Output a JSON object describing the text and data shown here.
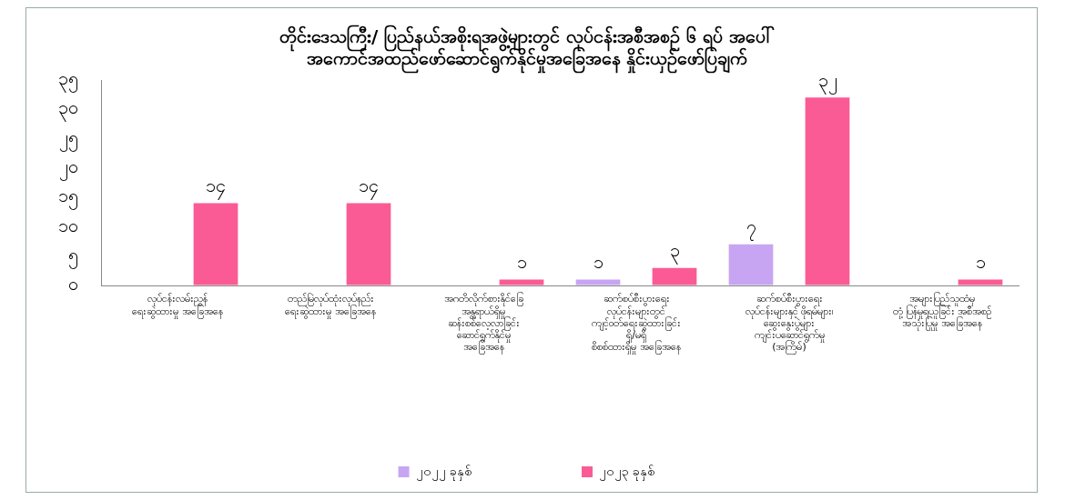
{
  "chart_data": {
    "type": "bar",
    "title": "တိုင်းဒေသကြီး/ ပြည်နယ်အစိုးရအဖွဲ့များတွင် လုပ်ငန်းအစီအစဉ် ၆ ရပ် အပေါ်\nအကောင်အထည်ဖော်ဆောင်ရွက်နိုင်မှုအခြေအနေ နှိုင်းယှဉ်ဖော်ပြချက်",
    "categories": [
      "လုပ်ငန်းလမ်းညွှန်\nရေးဆွဲထားမှု အခြေအနေ",
      "တည်မြဲလုပ်ထုံးလုပ်နည်း\nရေးဆွဲထားမှု အခြေအနေ",
      "အဂတိလိုက်စားနိုင်ခြေ\nအန္တရာယ်ရှိမှု\nဆန်းစစ်လေ့လာခြင်း\nဆောင်ရွက်နိုင်မှု\nအခြေအနေ",
      "ဆက်စပ်စီးပွားရေး\nလုပ်ငန်းများတွင်\nကျင့်ဝတ်ရေးဆွဲထားခြင်း\nရှိ/မရှိ\nစိစစ်ထားရှိမှု အခြေအနေ",
      "ဆက်စပ်စီးပွားရေး\nလုပ်ငန်းများနှင့် ဖိုရမ်များ၊\nဆွေးနွေးပွဲများ\nကျင်းပဆောင်ရွက်မှု\n(အကြိမ်)",
      "အများပြည်သူထံမှ\nတုံ့ပြန်မှုရယူခြင်း အစီအစဉ်\nအသုံးပြုမှု အခြေအနေ"
    ],
    "series": [
      {
        "name": "၂၀၂၂ ခုနှစ်",
        "color": "#c8a5f2",
        "values": [
          null,
          null,
          null,
          1,
          7,
          null
        ],
        "value_labels": [
          null,
          null,
          null,
          "၁",
          "၇",
          null
        ]
      },
      {
        "name": "၂၀၂၃ ခုနှစ်",
        "color": "#fb5b94",
        "values": [
          14,
          14,
          1,
          3,
          32,
          1
        ],
        "value_labels": [
          "၁၄",
          "၁၄",
          "၁",
          "၃",
          "၃၂",
          "၁"
        ]
      }
    ],
    "ylim": [
      0,
      35
    ],
    "yticks": [
      {
        "value": 0,
        "label": "၀"
      },
      {
        "value": 5,
        "label": "၅"
      },
      {
        "value": 10,
        "label": "၁၀"
      },
      {
        "value": 15,
        "label": "၁၅"
      },
      {
        "value": 20,
        "label": "၂၀"
      },
      {
        "value": 25,
        "label": "၂၅"
      },
      {
        "value": 30,
        "label": "၃၀"
      },
      {
        "value": 35,
        "label": "၃၅"
      }
    ],
    "grid": false,
    "legend": "bottom"
  }
}
